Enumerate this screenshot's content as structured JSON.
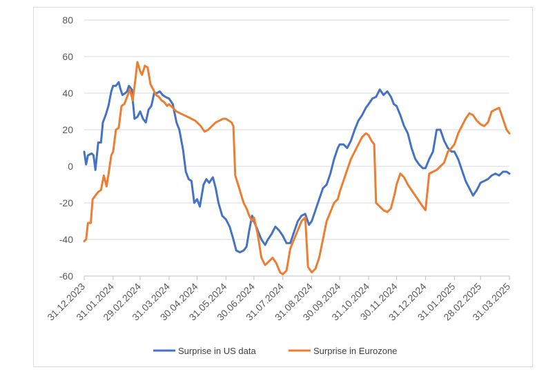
{
  "chart_data": {
    "type": "line",
    "title": "",
    "xlabel": "",
    "ylabel": "",
    "ylim": [
      -60,
      80
    ],
    "yticks": [
      -60,
      -40,
      -20,
      0,
      20,
      40,
      60,
      80
    ],
    "xticks": [
      "31.12.2023",
      "31.01.2024",
      "29.02.2024",
      "31.03.2024",
      "30.04.2024",
      "31.05.2024",
      "30.06.2024",
      "31.07.2024",
      "31.08.2024",
      "30.09.2024",
      "31.10.2024",
      "30.11.2024",
      "31.12.2024",
      "31.01.2025",
      "28.02.2025",
      "31.03.2025"
    ],
    "grid": true,
    "legend": "bottom",
    "series": [
      {
        "name": "Surprise in US data",
        "color": "#4472C4",
        "points": [
          [
            "31.12.2023",
            8
          ],
          [
            "02.01.2024",
            1
          ],
          [
            "04.01.2024",
            6
          ],
          [
            "08.01.2024",
            7
          ],
          [
            "10.01.2024",
            6
          ],
          [
            "12.01.2024",
            -2
          ],
          [
            "15.01.2024",
            13
          ],
          [
            "18.01.2024",
            13
          ],
          [
            "20.01.2024",
            24
          ],
          [
            "23.01.2024",
            28
          ],
          [
            "26.01.2024",
            33
          ],
          [
            "29.01.2024",
            41
          ],
          [
            "31.01.2024",
            44
          ],
          [
            "03.02.2024",
            44
          ],
          [
            "06.02.2024",
            46
          ],
          [
            "08.02.2024",
            42
          ],
          [
            "10.02.2024",
            39
          ],
          [
            "13.02.2024",
            40
          ],
          [
            "15.02.2024",
            41
          ],
          [
            "17.02.2024",
            44
          ],
          [
            "20.02.2024",
            42
          ],
          [
            "23.02.2024",
            26
          ],
          [
            "26.02.2024",
            27
          ],
          [
            "29.02.2024",
            30
          ],
          [
            "03.03.2024",
            26
          ],
          [
            "06.03.2024",
            24
          ],
          [
            "09.03.2024",
            31
          ],
          [
            "12.03.2024",
            33
          ],
          [
            "15.03.2024",
            40
          ],
          [
            "18.03.2024",
            40
          ],
          [
            "21.03.2024",
            41
          ],
          [
            "24.03.2024",
            39
          ],
          [
            "27.03.2024",
            38
          ],
          [
            "31.03.2024",
            37
          ],
          [
            "04.04.2024",
            34
          ],
          [
            "08.04.2024",
            24
          ],
          [
            "11.04.2024",
            20
          ],
          [
            "15.04.2024",
            9
          ],
          [
            "18.04.2024",
            -3
          ],
          [
            "21.04.2024",
            -7
          ],
          [
            "24.04.2024",
            -8
          ],
          [
            "27.04.2024",
            -20
          ],
          [
            "30.04.2024",
            -18
          ],
          [
            "03.05.2024",
            -22
          ],
          [
            "07.05.2024",
            -10
          ],
          [
            "10.05.2024",
            -7
          ],
          [
            "13.05.2024",
            -9
          ],
          [
            "17.05.2024",
            -6
          ],
          [
            "20.05.2024",
            -12
          ],
          [
            "23.05.2024",
            -20
          ],
          [
            "27.05.2024",
            -27
          ],
          [
            "31.05.2024",
            -29
          ],
          [
            "04.06.2024",
            -33
          ],
          [
            "08.06.2024",
            -40
          ],
          [
            "11.06.2024",
            -46
          ],
          [
            "15.06.2024",
            -47
          ],
          [
            "19.06.2024",
            -46
          ],
          [
            "22.06.2024",
            -44
          ],
          [
            "25.06.2024",
            -35
          ],
          [
            "28.06.2024",
            -27
          ],
          [
            "30.06.2024",
            -30
          ],
          [
            "04.07.2024",
            -35
          ],
          [
            "08.07.2024",
            -40
          ],
          [
            "12.07.2024",
            -43
          ],
          [
            "15.07.2024",
            -40
          ],
          [
            "19.07.2024",
            -37
          ],
          [
            "23.07.2024",
            -33
          ],
          [
            "27.07.2024",
            -35
          ],
          [
            "31.07.2024",
            -38
          ],
          [
            "04.08.2024",
            -42
          ],
          [
            "08.08.2024",
            -42
          ],
          [
            "12.08.2024",
            -36
          ],
          [
            "16.08.2024",
            -30
          ],
          [
            "20.08.2024",
            -27
          ],
          [
            "24.08.2024",
            -26
          ],
          [
            "28.08.2024",
            -32
          ],
          [
            "31.08.2024",
            -30
          ],
          [
            "04.09.2024",
            -24
          ],
          [
            "08.09.2024",
            -18
          ],
          [
            "12.09.2024",
            -12
          ],
          [
            "16.09.2024",
            -10
          ],
          [
            "20.09.2024",
            -4
          ],
          [
            "24.09.2024",
            4
          ],
          [
            "28.09.2024",
            10
          ],
          [
            "30.09.2024",
            12
          ],
          [
            "04.10.2024",
            12
          ],
          [
            "08.10.2024",
            10
          ],
          [
            "12.10.2024",
            14
          ],
          [
            "16.10.2024",
            20
          ],
          [
            "20.10.2024",
            25
          ],
          [
            "24.10.2024",
            28
          ],
          [
            "28.10.2024",
            32
          ],
          [
            "31.10.2024",
            34
          ],
          [
            "04.11.2024",
            37
          ],
          [
            "08.11.2024",
            38
          ],
          [
            "12.11.2024",
            42
          ],
          [
            "16.11.2024",
            39
          ],
          [
            "20.11.2024",
            41
          ],
          [
            "24.11.2024",
            38
          ],
          [
            "27.11.2024",
            34
          ],
          [
            "30.11.2024",
            33
          ],
          [
            "04.12.2024",
            28
          ],
          [
            "08.12.2024",
            22
          ],
          [
            "12.12.2024",
            18
          ],
          [
            "16.12.2024",
            10
          ],
          [
            "20.12.2024",
            4
          ],
          [
            "24.12.2024",
            1
          ],
          [
            "28.12.2024",
            -1
          ],
          [
            "31.12.2024",
            -1
          ],
          [
            "04.01.2025",
            4
          ],
          [
            "08.01.2025",
            8
          ],
          [
            "12.01.2025",
            20
          ],
          [
            "16.01.2025",
            20
          ],
          [
            "20.01.2025",
            14
          ],
          [
            "24.01.2025",
            10
          ],
          [
            "28.01.2025",
            8
          ],
          [
            "31.01.2025",
            8
          ],
          [
            "04.02.2025",
            4
          ],
          [
            "08.02.2025",
            -2
          ],
          [
            "12.02.2025",
            -8
          ],
          [
            "16.02.2025",
            -12
          ],
          [
            "20.02.2025",
            -16
          ],
          [
            "24.02.2025",
            -13
          ],
          [
            "28.02.2025",
            -9
          ],
          [
            "04.03.2025",
            -8
          ],
          [
            "08.03.2025",
            -7
          ],
          [
            "12.03.2025",
            -5
          ],
          [
            "16.03.2025",
            -4
          ],
          [
            "20.03.2025",
            -5
          ],
          [
            "24.03.2025",
            -3
          ],
          [
            "28.03.2025",
            -3
          ],
          [
            "31.03.2025",
            -4
          ]
        ]
      },
      {
        "name": "Surprise in Eurozone",
        "color": "#ED7D31",
        "points": [
          [
            "31.12.2023",
            -41
          ],
          [
            "02.01.2024",
            -40
          ],
          [
            "04.01.2024",
            -31
          ],
          [
            "07.01.2024",
            -31
          ],
          [
            "09.01.2024",
            -18
          ],
          [
            "12.01.2024",
            -16
          ],
          [
            "15.01.2024",
            -14
          ],
          [
            "18.01.2024",
            -13
          ],
          [
            "21.01.2024",
            -5
          ],
          [
            "24.01.2024",
            -11
          ],
          [
            "27.01.2024",
            -1
          ],
          [
            "29.01.2024",
            6
          ],
          [
            "31.01.2024",
            8
          ],
          [
            "03.02.2024",
            20
          ],
          [
            "06.02.2024",
            21
          ],
          [
            "09.02.2024",
            33
          ],
          [
            "12.02.2024",
            34
          ],
          [
            "15.02.2024",
            38
          ],
          [
            "18.02.2024",
            42
          ],
          [
            "21.02.2024",
            36
          ],
          [
            "24.02.2024",
            48
          ],
          [
            "26.02.2024",
            57
          ],
          [
            "29.02.2024",
            52
          ],
          [
            "02.03.2024",
            50
          ],
          [
            "05.03.2024",
            55
          ],
          [
            "08.03.2024",
            54
          ],
          [
            "11.03.2024",
            45
          ],
          [
            "14.03.2024",
            42
          ],
          [
            "17.03.2024",
            39
          ],
          [
            "20.03.2024",
            38
          ],
          [
            "23.03.2024",
            36
          ],
          [
            "26.03.2024",
            35
          ],
          [
            "29.03.2024",
            33
          ],
          [
            "31.03.2024",
            34
          ],
          [
            "04.04.2024",
            32
          ],
          [
            "08.04.2024",
            30
          ],
          [
            "12.04.2024",
            29
          ],
          [
            "16.04.2024",
            28
          ],
          [
            "20.04.2024",
            27
          ],
          [
            "24.04.2024",
            26
          ],
          [
            "28.04.2024",
            25
          ],
          [
            "30.04.2024",
            24
          ],
          [
            "04.05.2024",
            22
          ],
          [
            "08.05.2024",
            19
          ],
          [
            "12.05.2024",
            20
          ],
          [
            "16.05.2024",
            22
          ],
          [
            "20.05.2024",
            24
          ],
          [
            "24.05.2024",
            25
          ],
          [
            "28.05.2024",
            26
          ],
          [
            "31.05.2024",
            26
          ],
          [
            "03.06.2024",
            25
          ],
          [
            "06.06.2024",
            24
          ],
          [
            "08.06.2024",
            22
          ],
          [
            "10.06.2024",
            -5
          ],
          [
            "13.06.2024",
            -10
          ],
          [
            "16.06.2024",
            -15
          ],
          [
            "19.06.2024",
            -20
          ],
          [
            "22.06.2024",
            -23
          ],
          [
            "25.06.2024",
            -27
          ],
          [
            "28.06.2024",
            -30
          ],
          [
            "30.06.2024",
            -28
          ],
          [
            "04.07.2024",
            -37
          ],
          [
            "08.07.2024",
            -50
          ],
          [
            "12.07.2024",
            -54
          ],
          [
            "16.07.2024",
            -52
          ],
          [
            "20.07.2024",
            -50
          ],
          [
            "24.07.2024",
            -53
          ],
          [
            "28.07.2024",
            -58
          ],
          [
            "31.07.2024",
            -59
          ],
          [
            "04.08.2024",
            -57
          ],
          [
            "08.08.2024",
            -45
          ],
          [
            "12.08.2024",
            -40
          ],
          [
            "16.08.2024",
            -35
          ],
          [
            "20.08.2024",
            -30
          ],
          [
            "24.08.2024",
            -28
          ],
          [
            "27.08.2024",
            -55
          ],
          [
            "31.08.2024",
            -58
          ],
          [
            "04.09.2024",
            -56
          ],
          [
            "08.09.2024",
            -50
          ],
          [
            "12.09.2024",
            -40
          ],
          [
            "16.09.2024",
            -30
          ],
          [
            "20.09.2024",
            -25
          ],
          [
            "24.09.2024",
            -20
          ],
          [
            "28.09.2024",
            -18
          ],
          [
            "30.09.2024",
            -14
          ],
          [
            "04.10.2024",
            -8
          ],
          [
            "08.10.2024",
            -2
          ],
          [
            "12.10.2024",
            4
          ],
          [
            "16.10.2024",
            8
          ],
          [
            "20.10.2024",
            12
          ],
          [
            "24.10.2024",
            16
          ],
          [
            "28.10.2024",
            18
          ],
          [
            "31.10.2024",
            17
          ],
          [
            "03.11.2024",
            14
          ],
          [
            "06.11.2024",
            12
          ],
          [
            "08.11.2024",
            -20
          ],
          [
            "12.11.2024",
            -22
          ],
          [
            "16.11.2024",
            -24
          ],
          [
            "20.11.2024",
            -25
          ],
          [
            "24.11.2024",
            -23
          ],
          [
            "28.11.2024",
            -15
          ],
          [
            "30.11.2024",
            -10
          ],
          [
            "04.12.2024",
            -4
          ],
          [
            "08.12.2024",
            -6
          ],
          [
            "12.12.2024",
            -10
          ],
          [
            "16.12.2024",
            -13
          ],
          [
            "20.12.2024",
            -16
          ],
          [
            "24.12.2024",
            -19
          ],
          [
            "28.12.2024",
            -22
          ],
          [
            "31.12.2024",
            -24
          ],
          [
            "04.01.2025",
            -4
          ],
          [
            "08.01.2025",
            -3
          ],
          [
            "12.01.2025",
            -2
          ],
          [
            "16.01.2025",
            0
          ],
          [
            "20.01.2025",
            2
          ],
          [
            "24.01.2025",
            8
          ],
          [
            "28.01.2025",
            10
          ],
          [
            "31.01.2025",
            12
          ],
          [
            "04.02.2025",
            18
          ],
          [
            "08.02.2025",
            22
          ],
          [
            "12.02.2025",
            26
          ],
          [
            "16.02.2025",
            29
          ],
          [
            "20.02.2025",
            28
          ],
          [
            "24.02.2025",
            25
          ],
          [
            "28.02.2025",
            23
          ],
          [
            "04.03.2025",
            22
          ],
          [
            "08.03.2025",
            24
          ],
          [
            "12.03.2025",
            30
          ],
          [
            "16.03.2025",
            31
          ],
          [
            "20.03.2025",
            32
          ],
          [
            "24.03.2025",
            26
          ],
          [
            "28.03.2025",
            20
          ],
          [
            "31.03.2025",
            18
          ]
        ]
      }
    ]
  }
}
